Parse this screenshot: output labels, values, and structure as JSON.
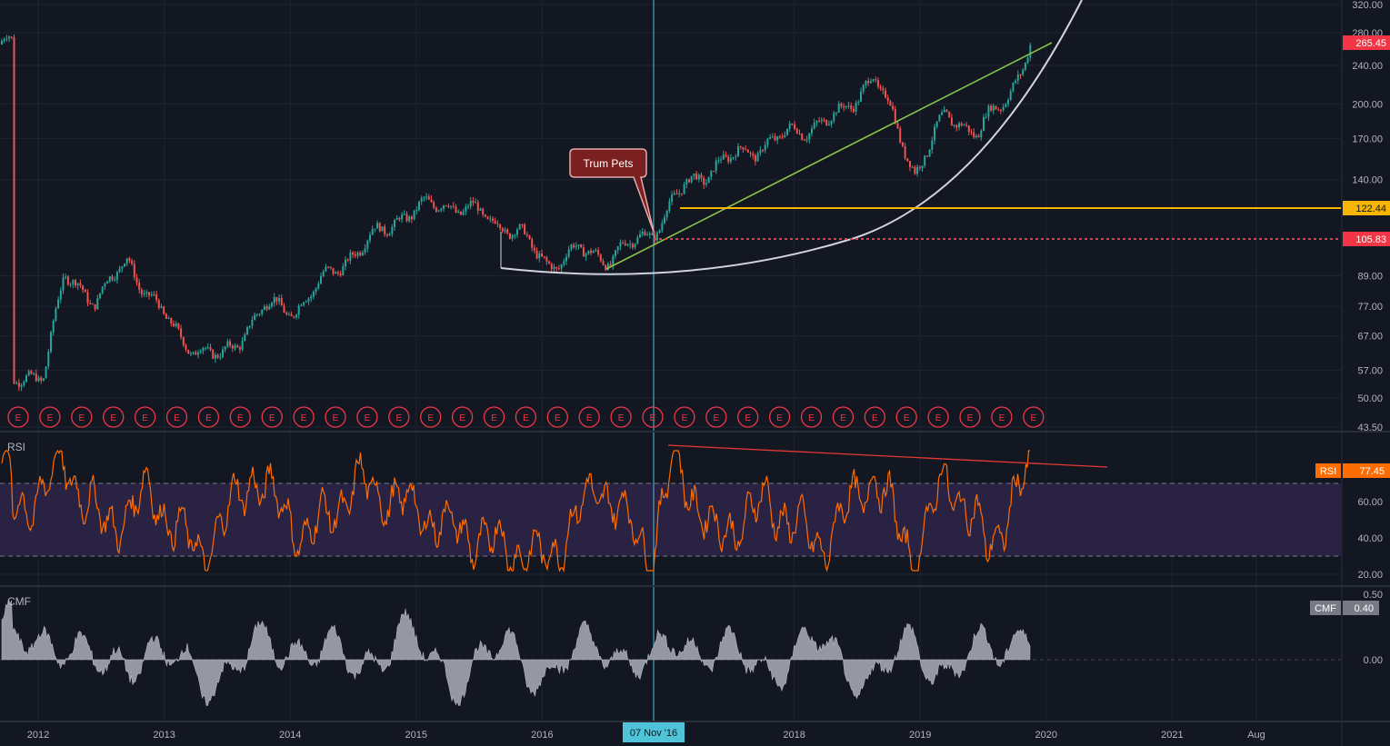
{
  "colors": {
    "background": "#131722",
    "grid": "#1f2433",
    "separator": "#2a2e39",
    "text": "#b2b5be",
    "up_candle": "#26a69a",
    "down_candle": "#ef5350",
    "curve": "#d1d4dc",
    "trendline": "#8bc34a",
    "level_yellow": "#f7b500",
    "level_red": "#f23645",
    "rsi_line": "#ff6d00",
    "rsi_band": "#2a2242",
    "rsi_trend": "#e53935",
    "cmf_fill": "#9598a1",
    "crosshair": "#4fc3d7",
    "callout_bg": "#7b2020",
    "callout_border": "#e6a9a9"
  },
  "price_axis": {
    "ticks": [
      "320.00",
      "280.00",
      "240.00",
      "200.00",
      "170.00",
      "140.00",
      "122.44",
      "105.83",
      "89.00",
      "77.00",
      "67.00",
      "57.00",
      "50.00",
      "43.50"
    ],
    "last_price_tag": "265.45",
    "yellow_level_tag": "122.44",
    "red_level_tag": "105.83"
  },
  "time_axis": {
    "ticks": [
      "2012",
      "2013",
      "2014",
      "2015",
      "2016",
      "07 Nov '16",
      "2018",
      "2019",
      "2020",
      "2021",
      "Aug"
    ],
    "crosshair_label": "07 Nov '16"
  },
  "annotation": {
    "callout_text": "Trum Pets"
  },
  "earnings": {
    "marker_label": "E",
    "count": 33
  },
  "rsi_pane": {
    "label": "RSI",
    "value_tag_name": "RSI",
    "value_tag_value": "77.45",
    "ticks": [
      "60.00",
      "40.00",
      "20.00"
    ],
    "upper_band": 70,
    "lower_band": 30
  },
  "cmf_pane": {
    "label": "CMF",
    "value_tag_name": "CMF",
    "value_tag_value": "0.40",
    "ticks": [
      "0.50",
      "0.00"
    ]
  },
  "chart_data": [
    {
      "type": "line",
      "title": "",
      "scale": "log",
      "ylim": [
        43.5,
        320
      ],
      "x": [
        "2011-10",
        "2012-01",
        "2012-03",
        "2012-06",
        "2012-09",
        "2012-11",
        "2013-02",
        "2013-06",
        "2013-10",
        "2014-01",
        "2014-05",
        "2014-08",
        "2014-11",
        "2015-03",
        "2015-07",
        "2015-10",
        "2016-01",
        "2016-04",
        "2016-07",
        "2016-11",
        "2017-02",
        "2017-05",
        "2017-08",
        "2017-11",
        "2018-02",
        "2018-05",
        "2018-08",
        "2018-10",
        "2018-12",
        "2019-03",
        "2019-06",
        "2019-09",
        "2019-11"
      ],
      "series": [
        {
          "values": [
            53,
            57,
            88,
            80,
            95,
            82,
            66,
            60,
            77,
            76,
            93,
            105,
            118,
            126,
            118,
            110,
            94,
            100,
            97,
            110,
            135,
            150,
            160,
            170,
            180,
            190,
            230,
            185,
            145,
            190,
            175,
            210,
            265
          ]
        }
      ],
      "levels": [
        122.44,
        105.83
      ],
      "grid": true
    },
    {
      "type": "line",
      "title": "RSI",
      "ylim": [
        10,
        90
      ],
      "bands": [
        30,
        70
      ],
      "x": [
        "2011-10",
        "2012-03",
        "2012-07",
        "2012-11",
        "2013-04",
        "2013-09",
        "2014-02",
        "2014-07",
        "2014-11",
        "2015-04",
        "2015-09",
        "2016-01",
        "2016-06",
        "2016-11",
        "2017-01",
        "2017-05",
        "2017-10",
        "2018-03",
        "2018-08",
        "2018-12",
        "2019-03",
        "2019-07",
        "2019-11"
      ],
      "series": [
        {
          "values": [
            50,
            80,
            45,
            65,
            30,
            75,
            40,
            70,
            60,
            45,
            35,
            28,
            70,
            30,
            85,
            40,
            60,
            35,
            75,
            28,
            75,
            35,
            77.45
          ]
        }
      ],
      "grid": true
    },
    {
      "type": "area",
      "title": "CMF",
      "ylim": [
        -0.4,
        0.5
      ],
      "x": [
        "2011-10",
        "2012-03",
        "2012-07",
        "2012-11",
        "2013-04",
        "2013-09",
        "2014-02",
        "2014-07",
        "2014-11",
        "2015-04",
        "2015-09",
        "2016-01",
        "2016-06",
        "2016-11",
        "2017-01",
        "2017-05",
        "2017-10",
        "2018-03",
        "2018-08",
        "2018-12",
        "2019-03",
        "2019-07",
        "2019-11"
      ],
      "series": [
        {
          "values": [
            0.1,
            0.3,
            -0.2,
            0.2,
            -0.3,
            0.1,
            0.2,
            -0.1,
            0.35,
            -0.25,
            0.15,
            -0.2,
            0.25,
            -0.15,
            0.3,
            0.1,
            -0.1,
            0.2,
            -0.3,
            0.25,
            -0.2,
            0.15,
            0.4
          ]
        }
      ],
      "grid": true
    }
  ]
}
